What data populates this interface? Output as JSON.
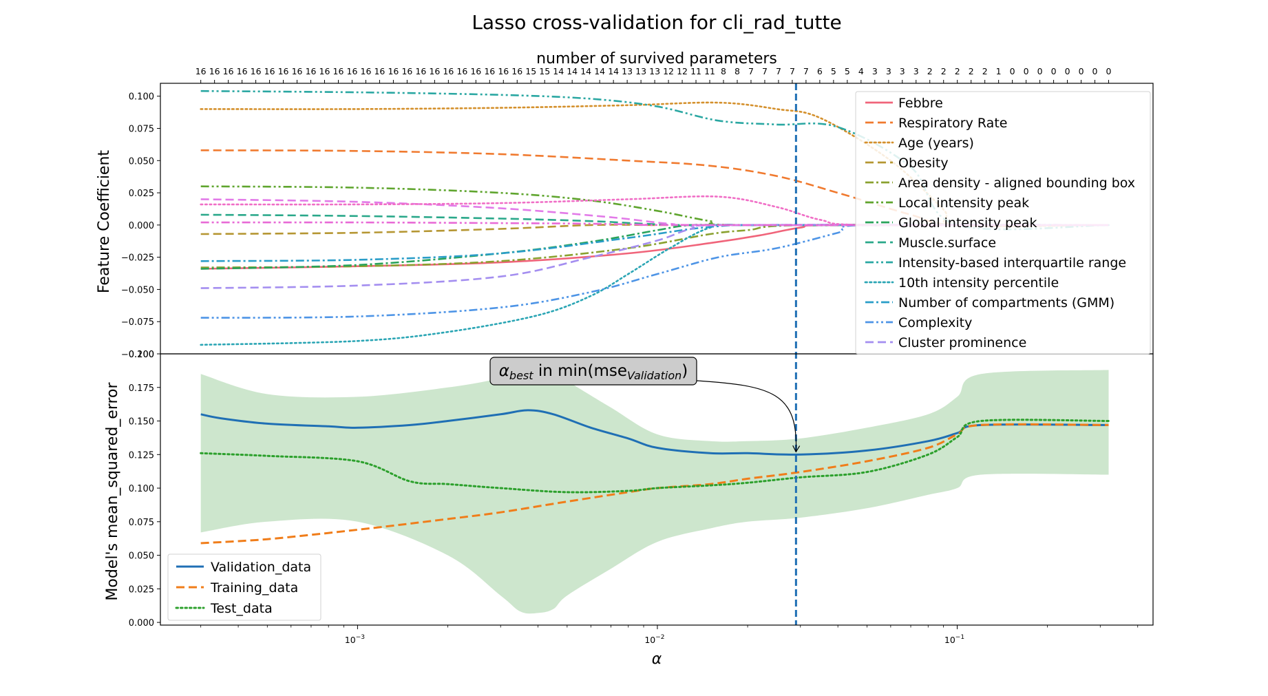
{
  "figure_title": "Lasso cross-validation for cli_rad_tutte",
  "chart_data": [
    {
      "type": "line",
      "title": "",
      "top_axis_label": "number of survived parameters",
      "xlabel": "",
      "ylabel": "Feature Coefficient",
      "x_scale": "log",
      "xlim": [
        0.00022,
        0.45
      ],
      "ylim": [
        -0.1,
        0.11
      ],
      "yticks": [
        0.1,
        0.075,
        0.05,
        0.025,
        0.0,
        -0.025,
        -0.05,
        -0.075,
        -0.1
      ],
      "ytick_labels": [
        "0.100",
        "0.075",
        "0.050",
        "0.025",
        "0.000",
        "−0.025",
        "−0.050",
        "−0.075",
        "−0.100"
      ],
      "alpha_best": 0.029,
      "survived_parameters": {
        "alpha_start": 0.0003,
        "alpha_end": 0.32,
        "counts": [
          "16",
          "16",
          "16",
          "16",
          "16",
          "16",
          "16",
          "16",
          "16",
          "16",
          "16",
          "16",
          "16",
          "16",
          "16",
          "16",
          "16",
          "16",
          "16",
          "16",
          "16",
          "16",
          "16",
          "16",
          "15",
          "15",
          "14",
          "14",
          "14",
          "14",
          "14",
          "13",
          "13",
          "13",
          "12",
          "12",
          "11",
          "11",
          "8",
          "8",
          "7",
          "7",
          "7",
          "7",
          "7",
          "6",
          "5",
          "5",
          "4",
          "3",
          "3",
          "3",
          "3",
          "2",
          "2",
          "2",
          "2",
          "2",
          "1",
          "0",
          "0",
          "0",
          "0",
          "0",
          "0",
          "0",
          "0"
        ]
      },
      "legend_position": "top-right",
      "series": [
        {
          "name": "Febbre",
          "color": "#f0647a",
          "dash": "solid",
          "x": [
            0.0003,
            0.001,
            0.003,
            0.008,
            0.015,
            0.022,
            0.03,
            0.04,
            0.32
          ],
          "y": [
            -0.034,
            -0.032,
            -0.029,
            -0.022,
            -0.014,
            -0.008,
            -0.002,
            0,
            0
          ]
        },
        {
          "name": "Respiratory Rate",
          "color": "#f07a2f",
          "dash": "dashed",
          "x": [
            0.0003,
            0.001,
            0.003,
            0.008,
            0.015,
            0.025,
            0.04,
            0.07,
            0.1,
            0.32
          ],
          "y": [
            0.058,
            0.0575,
            0.055,
            0.05,
            0.046,
            0.038,
            0.025,
            0.008,
            0,
            0
          ]
        },
        {
          "name": "Age (years)",
          "color": "#d4902c",
          "dash": "dotted",
          "x": [
            0.0003,
            0.001,
            0.003,
            0.008,
            0.016,
            0.025,
            0.035,
            0.06,
            0.09,
            0.1,
            0.32
          ],
          "y": [
            0.09,
            0.09,
            0.091,
            0.093,
            0.095,
            0.09,
            0.083,
            0.05,
            0.012,
            0,
            0
          ]
        },
        {
          "name": "Obesity",
          "color": "#b59632",
          "dash": "dashed",
          "x": [
            0.0003,
            0.001,
            0.003,
            0.006,
            0.01,
            0.02,
            0.035,
            0.32
          ],
          "y": [
            -0.007,
            -0.006,
            -0.003,
            0,
            0,
            0,
            0,
            0
          ]
        },
        {
          "name": "Area density - aligned bounding box",
          "color": "#8aa12f",
          "dash": "dashdot",
          "x": [
            0.0003,
            0.001,
            0.003,
            0.008,
            0.015,
            0.02,
            0.032,
            0.32
          ],
          "y": [
            -0.033,
            -0.032,
            -0.028,
            -0.018,
            -0.007,
            -0.004,
            0,
            0
          ]
        },
        {
          "name": "Local intensity peak",
          "color": "#5fa52e",
          "dash": "dashdotdot",
          "x": [
            0.0003,
            0.001,
            0.003,
            0.006,
            0.01,
            0.015,
            0.02,
            0.32
          ],
          "y": [
            0.03,
            0.029,
            0.025,
            0.019,
            0.011,
            0.003,
            0,
            0
          ]
        },
        {
          "name": "Global intensity peak",
          "color": "#2aa35b",
          "dash": "dashdot",
          "x": [
            0.0003,
            0.001,
            0.003,
            0.006,
            0.01,
            0.013,
            0.02,
            0.32
          ],
          "y": [
            -0.034,
            -0.031,
            -0.022,
            -0.013,
            -0.004,
            0,
            0,
            0
          ]
        },
        {
          "name": "Muscle.surface",
          "color": "#2aa88a",
          "dash": "dashed",
          "x": [
            0.0003,
            0.001,
            0.003,
            0.006,
            0.009,
            0.012,
            0.02,
            0.32
          ],
          "y": [
            0.008,
            0.007,
            0.005,
            0.003,
            0.001,
            0,
            0,
            0
          ]
        },
        {
          "name": "Intensity-based interquartile range",
          "color": "#2aa7a2",
          "dash": "dashdotdot",
          "x": [
            0.0003,
            0.001,
            0.003,
            0.006,
            0.01,
            0.016,
            0.025,
            0.04,
            0.07,
            0.1,
            0.32
          ],
          "y": [
            0.104,
            0.103,
            0.101,
            0.098,
            0.092,
            0.081,
            0.078,
            0.076,
            0.045,
            0,
            0
          ]
        },
        {
          "name": "10th intensity percentile",
          "color": "#2aa5b4",
          "dash": "dotted",
          "x": [
            0.0003,
            0.001,
            0.002,
            0.004,
            0.006,
            0.008,
            0.011,
            0.015,
            0.02,
            0.32
          ],
          "y": [
            -0.093,
            -0.09,
            -0.083,
            -0.07,
            -0.055,
            -0.038,
            -0.018,
            -0.002,
            0,
            0
          ]
        },
        {
          "name": "Number of compartments (GMM)",
          "color": "#2a9dc8",
          "dash": "dashdot",
          "x": [
            0.0003,
            0.001,
            0.003,
            0.008,
            0.013,
            0.018,
            0.02,
            0.32
          ],
          "y": [
            -0.028,
            -0.027,
            -0.022,
            -0.01,
            -0.003,
            0,
            0,
            0
          ]
        },
        {
          "name": "Complexity",
          "color": "#4d94e6",
          "dash": "dashdotdot",
          "x": [
            0.0003,
            0.001,
            0.003,
            0.006,
            0.01,
            0.016,
            0.025,
            0.04,
            0.05,
            0.32
          ],
          "y": [
            -0.072,
            -0.071,
            -0.064,
            -0.052,
            -0.038,
            -0.025,
            -0.018,
            -0.006,
            0,
            0
          ]
        },
        {
          "name": "Cluster prominence",
          "color": "#a48ef0",
          "dash": "dashed",
          "x": [
            0.0003,
            0.001,
            0.003,
            0.006,
            0.01,
            0.013,
            0.018,
            0.32
          ],
          "y": [
            -0.049,
            -0.047,
            -0.04,
            -0.025,
            -0.012,
            -0.003,
            0,
            0
          ]
        },
        {
          "name": "",
          "color": "#e27ae8",
          "dash": "dashed",
          "x": [
            0.0003,
            0.001,
            0.003,
            0.007,
            0.011,
            0.016,
            0.32
          ],
          "y": [
            0.02,
            0.018,
            0.013,
            0.006,
            0.001,
            0,
            0
          ]
        },
        {
          "name": "",
          "color": "#f06ec6",
          "dash": "dotted",
          "x": [
            0.0003,
            0.001,
            0.003,
            0.008,
            0.016,
            0.025,
            0.035,
            0.05,
            0.32
          ],
          "y": [
            0.016,
            0.016,
            0.017,
            0.02,
            0.022,
            0.014,
            0.004,
            0,
            0
          ]
        },
        {
          "name": "",
          "color": "#e86ad6",
          "dash": "dashdotdot",
          "x": [
            0.0003,
            0.001,
            0.003,
            0.006,
            0.009,
            0.012,
            0.32
          ],
          "y": [
            0.002,
            0.002,
            0.0015,
            0.001,
            0.0003,
            0,
            0
          ]
        }
      ]
    },
    {
      "type": "line",
      "title": "",
      "xlabel": "α",
      "ylabel": "Model's mean_squared_error",
      "x_scale": "log",
      "xlim": [
        0.00022,
        0.45
      ],
      "ylim": [
        -0.002,
        0.2
      ],
      "xticks": [
        0.001,
        0.01,
        0.1
      ],
      "xtick_labels": [
        "10",
        "10",
        "10"
      ],
      "xtick_exponents": [
        "−3",
        "−2",
        "−1"
      ],
      "yticks": [
        0.0,
        0.025,
        0.05,
        0.075,
        0.1,
        0.125,
        0.15,
        0.175,
        0.2
      ],
      "ytick_labels": [
        "0.000",
        "0.025",
        "0.050",
        "0.075",
        "0.100",
        "0.125",
        "0.150",
        "0.175",
        "0.200"
      ],
      "alpha_best": 0.029,
      "annotation": {
        "prefix": "α",
        "sub1": "best",
        "mid": " in min(mse",
        "sub2": "Validation",
        "suffix": ")"
      },
      "legend_position": "bottom-left",
      "band": {
        "color": "#cde6cd",
        "x": [
          0.0003,
          0.0005,
          0.001,
          0.002,
          0.003,
          0.0035,
          0.004,
          0.0045,
          0.005,
          0.007,
          0.01,
          0.015,
          0.02,
          0.03,
          0.05,
          0.08,
          0.1,
          0.12,
          0.32
        ],
        "upper": [
          0.185,
          0.17,
          0.168,
          0.175,
          0.182,
          0.188,
          0.19,
          0.188,
          0.18,
          0.16,
          0.14,
          0.135,
          0.135,
          0.137,
          0.145,
          0.155,
          0.168,
          0.185,
          0.188
        ],
        "lower": [
          0.067,
          0.075,
          0.075,
          0.05,
          0.02,
          0.008,
          0.007,
          0.01,
          0.02,
          0.04,
          0.06,
          0.07,
          0.075,
          0.078,
          0.085,
          0.095,
          0.1,
          0.11,
          0.11
        ]
      },
      "series": [
        {
          "name": "Validation_data",
          "color": "#1f6fb4",
          "dash": "solid",
          "x": [
            0.0003,
            0.00035,
            0.0005,
            0.0008,
            0.001,
            0.0015,
            0.002,
            0.003,
            0.0037,
            0.0045,
            0.006,
            0.008,
            0.01,
            0.015,
            0.02,
            0.03,
            0.05,
            0.08,
            0.1,
            0.12,
            0.32
          ],
          "y": [
            0.155,
            0.152,
            0.148,
            0.146,
            0.145,
            0.147,
            0.15,
            0.155,
            0.158,
            0.155,
            0.145,
            0.137,
            0.13,
            0.126,
            0.126,
            0.125,
            0.128,
            0.135,
            0.141,
            0.147,
            0.147
          ]
        },
        {
          "name": "Training_data",
          "color": "#f07d1a",
          "dash": "dashed",
          "x": [
            0.0003,
            0.0005,
            0.001,
            0.002,
            0.003,
            0.005,
            0.008,
            0.01,
            0.015,
            0.02,
            0.03,
            0.05,
            0.08,
            0.1,
            0.12,
            0.32
          ],
          "y": [
            0.059,
            0.062,
            0.069,
            0.077,
            0.082,
            0.09,
            0.097,
            0.1,
            0.103,
            0.107,
            0.112,
            0.12,
            0.13,
            0.14,
            0.147,
            0.147
          ]
        },
        {
          "name": "Test_data",
          "color": "#2ca02c",
          "dash": "dotted",
          "x": [
            0.0003,
            0.0005,
            0.001,
            0.0015,
            0.002,
            0.003,
            0.005,
            0.008,
            0.01,
            0.015,
            0.02,
            0.03,
            0.05,
            0.08,
            0.1,
            0.12,
            0.32
          ],
          "y": [
            0.126,
            0.124,
            0.12,
            0.105,
            0.103,
            0.1,
            0.097,
            0.098,
            0.1,
            0.102,
            0.104,
            0.108,
            0.112,
            0.125,
            0.138,
            0.15,
            0.15
          ]
        }
      ]
    }
  ]
}
